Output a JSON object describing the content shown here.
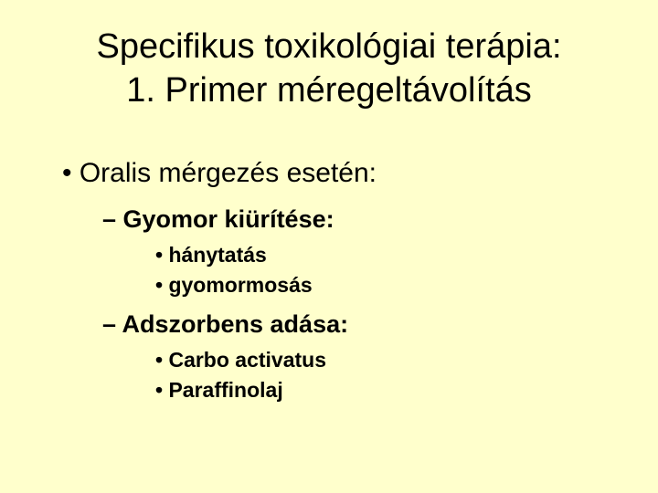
{
  "background_color": "#ffffcc",
  "text_color": "#000000",
  "title": {
    "line1": "Specifikus toxikológiai terápia:",
    "line2": "1. Primer méregeltávolítás",
    "fontsize": 38,
    "align": "center"
  },
  "content": {
    "level1": {
      "text": "Oralis mérgezés esetén:",
      "fontsize": 30,
      "bullet": "•"
    },
    "sections": [
      {
        "heading": "Gyomor kiürítése:",
        "heading_fontsize": 27,
        "heading_bullet": "–",
        "items": [
          {
            "text": "hánytatás",
            "fontsize": 23,
            "bullet": "•"
          },
          {
            "text": "gyomormosás",
            "fontsize": 23,
            "bullet": "•"
          }
        ]
      },
      {
        "heading": "Adszorbens adása:",
        "heading_fontsize": 27,
        "heading_bullet": "–",
        "items": [
          {
            "text": "Carbo activatus",
            "fontsize": 23,
            "bullet": "•"
          },
          {
            "text": "Paraffinolaj",
            "fontsize": 23,
            "bullet": "•"
          }
        ]
      }
    ]
  }
}
